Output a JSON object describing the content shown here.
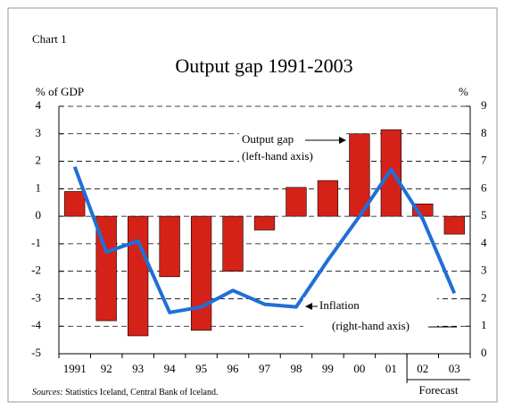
{
  "chart_data": {
    "type": "bar_line",
    "label": "Chart 1",
    "title": "Output gap 1991-2003",
    "y_axis_label": "% of GDP",
    "y2_axis_label": "%",
    "categories": [
      "1991",
      "92",
      "93",
      "94",
      "95",
      "96",
      "97",
      "98",
      "99",
      "00",
      "01",
      "02",
      "03"
    ],
    "series": [
      {
        "name": "Output gap",
        "type": "bar",
        "color": "#d52219",
        "values": [
          0.9,
          -3.8,
          -4.35,
          -2.2,
          -4.15,
          -2.0,
          -0.5,
          1.05,
          1.3,
          3.0,
          3.15,
          0.45,
          -0.65
        ]
      },
      {
        "name": "Inflation",
        "type": "line",
        "axis": "y2",
        "color": "#1f6fd6",
        "values": [
          6.8,
          3.7,
          4.1,
          1.5,
          1.7,
          2.3,
          1.8,
          1.7,
          3.4,
          5.0,
          6.7,
          4.9,
          2.2
        ]
      }
    ],
    "annotations": [
      "(left-hand axis)",
      "(right-hand axis)"
    ],
    "forecast_label": "Forecast",
    "sources_label": "Sources:",
    "sources": "Statistics Iceland, Central Bank of Iceland.",
    "ylim": [
      -5,
      4
    ],
    "yticks": [
      -5,
      -4,
      -3,
      -2,
      -1,
      0,
      1,
      2,
      3,
      4
    ],
    "y2lim": [
      0,
      9
    ],
    "y2ticks": [
      0,
      1,
      2,
      3,
      4,
      5,
      6,
      7,
      8,
      9
    ],
    "grid": true
  }
}
